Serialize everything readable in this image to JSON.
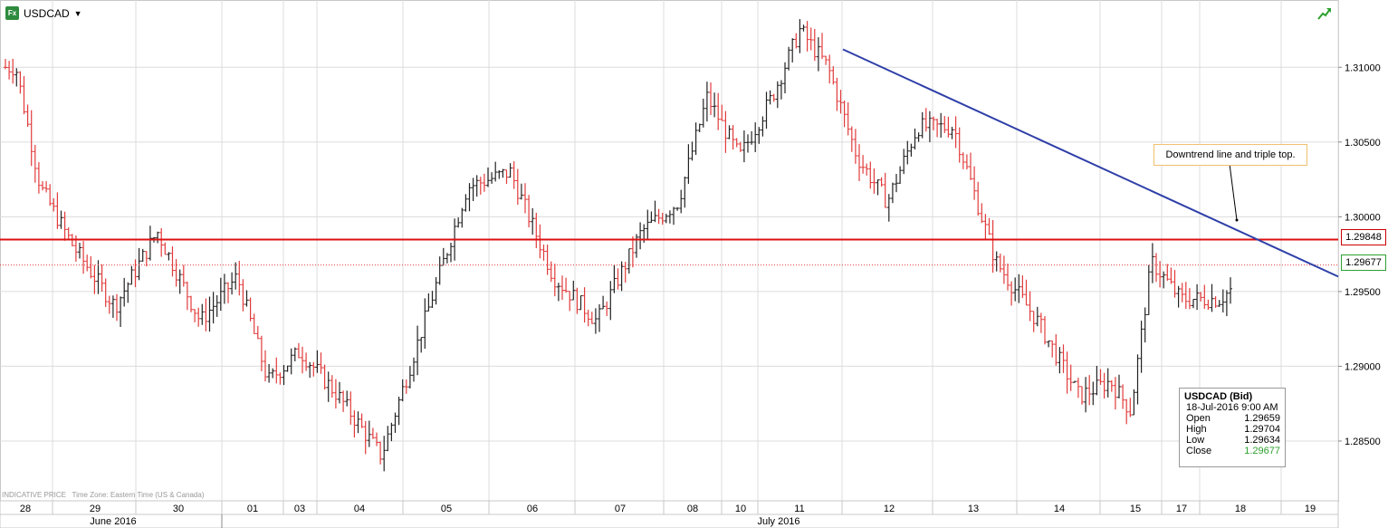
{
  "header": {
    "instrument_label": "USDCAD",
    "fx_badge": "Fx",
    "icons": [
      "fx-icon",
      "caret-down-icon",
      "trend-up-arrow-icon"
    ]
  },
  "footer": {
    "indicative": "INDICATIVE PRICE",
    "timezone": "Time Zone: Eastern Time (US & Canada)"
  },
  "annotation": {
    "text": "Downtrend line and triple top."
  },
  "price_tags": {
    "resistance": "1.29848",
    "last": "1.29677"
  },
  "tooltip": {
    "title": "USDCAD (Bid)",
    "datetime": "18-Jul-2016 9:00 AM",
    "rows": [
      {
        "label": "Open",
        "value": "1.29659"
      },
      {
        "label": "High",
        "value": "1.29704"
      },
      {
        "label": "Low",
        "value": "1.29634"
      },
      {
        "label": "Close",
        "value": "1.29677"
      }
    ]
  },
  "colors": {
    "up": "#222222",
    "down": "#e23b3b",
    "resistance": "#dd1111",
    "trendline": "#2f3fa8",
    "grid": "#dcdcdc",
    "last_price": "#e23b3b"
  },
  "chart_data": {
    "type": "bar",
    "subtype": "ohlc",
    "instrument": "USDCAD",
    "yaxis": {
      "side": "right",
      "ylim": [
        1.281,
        1.3145
      ],
      "ticks": [
        "1.28500",
        "1.29000",
        "1.29500",
        "1.30000",
        "1.30500",
        "1.31000"
      ]
    },
    "xaxis": {
      "days": [
        "28",
        "29",
        "30",
        "01",
        "03",
        "04",
        "05",
        "06",
        "07",
        "08",
        "10",
        "11",
        "12",
        "13",
        "14",
        "15",
        "17",
        "18",
        "19"
      ],
      "months": [
        "June 2016",
        "July 2016"
      ]
    },
    "grid": true,
    "horizontal_lines": [
      {
        "value": 1.29848,
        "label": "1.29848",
        "style": "solid"
      },
      {
        "value": 1.29677,
        "label": "1.29677",
        "style": "dotted"
      }
    ],
    "trendline": {
      "from": {
        "day": "11",
        "value": 1.3112
      },
      "to": {
        "day": "19",
        "value": 1.296
      }
    },
    "anchors": [
      {
        "day": "28",
        "value": 1.31
      },
      {
        "day": "28",
        "value": 1.302
      },
      {
        "day": "29",
        "value": 1.298
      },
      {
        "day": "29",
        "value": 1.294
      },
      {
        "day": "30",
        "value": 1.299
      },
      {
        "day": "30",
        "value": 1.293
      },
      {
        "day": "01",
        "value": 1.296
      },
      {
        "day": "01",
        "value": 1.289
      },
      {
        "day": "03",
        "value": 1.291
      },
      {
        "day": "04",
        "value": 1.288
      },
      {
        "day": "04",
        "value": 1.284
      },
      {
        "day": "05",
        "value": 1.293
      },
      {
        "day": "05",
        "value": 1.302
      },
      {
        "day": "06",
        "value": 1.303
      },
      {
        "day": "06",
        "value": 1.296
      },
      {
        "day": "07",
        "value": 1.293
      },
      {
        "day": "07",
        "value": 1.299
      },
      {
        "day": "08",
        "value": 1.301
      },
      {
        "day": "08",
        "value": 1.308
      },
      {
        "day": "10",
        "value": 1.304
      },
      {
        "day": "11",
        "value": 1.308
      },
      {
        "day": "11",
        "value": 1.3125
      },
      {
        "day": "11",
        "value": 1.31
      },
      {
        "day": "12",
        "value": 1.304
      },
      {
        "day": "12",
        "value": 1.301
      },
      {
        "day": "12",
        "value": 1.306
      },
      {
        "day": "13",
        "value": 1.306
      },
      {
        "day": "13",
        "value": 1.297
      },
      {
        "day": "14",
        "value": 1.293
      },
      {
        "day": "14",
        "value": 1.288
      },
      {
        "day": "15",
        "value": 1.289
      },
      {
        "day": "15",
        "value": 1.287
      },
      {
        "day": "15",
        "value": 1.297
      },
      {
        "day": "17",
        "value": 1.2945
      },
      {
        "day": "18",
        "value": 1.2945
      },
      {
        "day": "18",
        "value": 1.29677
      }
    ]
  }
}
